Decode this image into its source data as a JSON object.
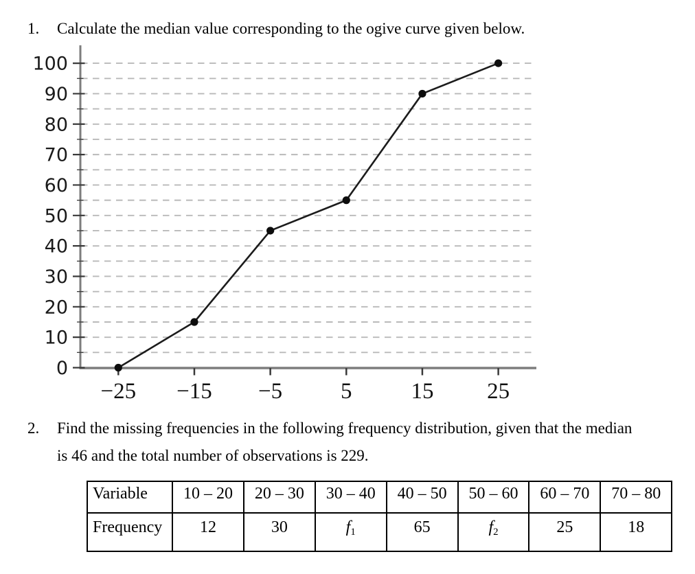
{
  "questions": {
    "q1": {
      "number": "1.",
      "text": "Calculate the median value corresponding to the ogive curve given below."
    },
    "q2": {
      "number": "2.",
      "line1": "Find the missing frequencies in the following frequency distribution, given that the median",
      "line2": "is 46 and the total number of observations is 229."
    }
  },
  "chart_data": {
    "type": "line",
    "title": "",
    "xlabel": "",
    "ylabel": "",
    "x": [
      -25,
      -15,
      -5,
      5,
      15,
      25
    ],
    "y": [
      0,
      15,
      45,
      55,
      90,
      100
    ],
    "x_tick_labels": [
      "−25",
      "−15",
      "−5",
      "5",
      "15",
      "25"
    ],
    "y_tick_values": [
      0,
      10,
      20,
      30,
      40,
      50,
      60,
      70,
      80,
      90,
      100
    ],
    "minor_grid_step": 5,
    "xlim": [
      -30,
      30.5
    ],
    "ylim": [
      0,
      106
    ],
    "grid": "horizontal-dashed",
    "legend_position": "none",
    "marker": "filled-circle",
    "colors": {
      "line": "#1c1c1c",
      "marker": "#0d0d0d",
      "axis": "#7d7d7d",
      "tick": "#3a3a3a",
      "grid": "#b9b9b9",
      "text": "#1a1a1a"
    }
  },
  "table": {
    "rows": [
      {
        "header": "Variable",
        "cells": [
          "10 – 20",
          "20 – 30",
          "30 – 40",
          "40 – 50",
          "50 – 60",
          "60 – 70",
          "70 – 80"
        ]
      },
      {
        "header": "Frequency",
        "cells": [
          "12",
          "30",
          {
            "base": "f",
            "sub": "1"
          },
          "65",
          {
            "base": "f",
            "sub": "2"
          },
          "25",
          "18"
        ]
      }
    ]
  }
}
